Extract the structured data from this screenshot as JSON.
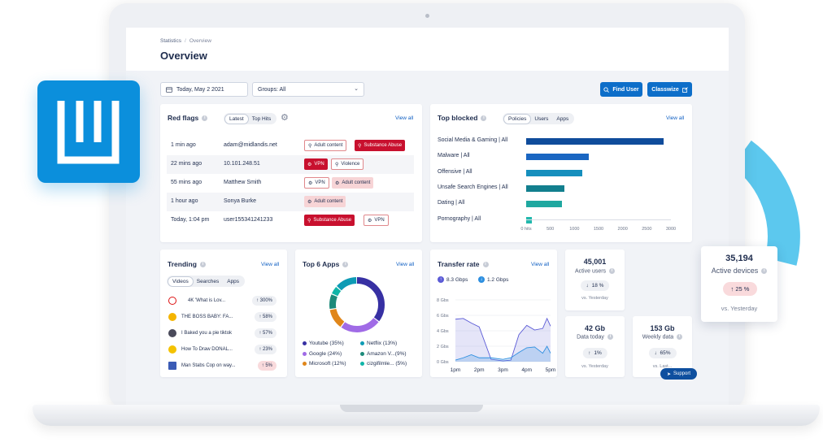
{
  "header": {
    "breadcrumb_root": "Statistics",
    "breadcrumb_current": "Overview",
    "title": "Overview"
  },
  "filters": {
    "date": "Today, May 2 2021",
    "groups": "Groups: All"
  },
  "actions": {
    "find_user": "Find User",
    "classwize": "Classwize"
  },
  "red_flags": {
    "title": "Red flags",
    "tabs": [
      "Latest",
      "Top Hits"
    ],
    "view_all": "View all",
    "rows": [
      {
        "time": "1 min ago",
        "user": "adam@midlandis.net",
        "tags": [
          {
            "label": "Adult content",
            "style": "outline"
          },
          {
            "label": "Substance Abuse",
            "style": "red"
          }
        ]
      },
      {
        "time": "22 mins ago",
        "user": "10.101.248.51",
        "tags": [
          {
            "label": "VPN",
            "style": "red"
          },
          {
            "label": "Violence",
            "style": "outline"
          }
        ]
      },
      {
        "time": "55 mins ago",
        "user": "Matthew Smith",
        "tags": [
          {
            "label": "VPN",
            "style": "outline"
          },
          {
            "label": "Adult content",
            "style": "pink"
          }
        ]
      },
      {
        "time": "1 hour ago",
        "user": "Sonya Burke",
        "tags": [
          {
            "label": "Adult content",
            "style": "pink"
          }
        ]
      },
      {
        "time": "Today, 1:04 pm",
        "user": "user155341241233",
        "tags": [
          {
            "label": "Substance Abuse",
            "style": "red"
          },
          {
            "label": "VPN",
            "style": "outline"
          }
        ]
      }
    ]
  },
  "top_blocked": {
    "title": "Top blocked",
    "tabs": [
      "Policies",
      "Users",
      "Apps"
    ],
    "view_all": "View all",
    "bars": [
      {
        "label": "Social Media & Gaming | All",
        "value": 2850,
        "color": "#0f4c9b"
      },
      {
        "label": "Malware | All",
        "value": 1300,
        "color": "#1a66c2"
      },
      {
        "label": "Offensive | All",
        "value": 1170,
        "color": "#168fbd"
      },
      {
        "label": "Unsafe Search Engines | All",
        "value": 800,
        "color": "#127f8e"
      },
      {
        "label": "Dating | All",
        "value": 740,
        "color": "#1fa8a0"
      },
      {
        "label": "Pornography | All",
        "value": 110,
        "color": "#22b8ad"
      }
    ],
    "ticks": [
      "0 hits",
      "500",
      "1000",
      "1500",
      "2000",
      "2500",
      "3000"
    ]
  },
  "trending": {
    "title": "Trending",
    "view_all": "View all",
    "tabs": [
      "Videos",
      "Searches",
      "Apps"
    ],
    "items": [
      {
        "text": "4K 'What is Lov...",
        "change": "300%",
        "tone": "grey",
        "icon": "heart-icon"
      },
      {
        "text": "THE BOSS BABY: FA...",
        "change": "58%",
        "tone": "grey",
        "icon": "emoji-icon"
      },
      {
        "text": "I Baked you a pie tiktok",
        "change": "57%",
        "tone": "grey",
        "icon": "avatar-icon"
      },
      {
        "text": "How To Draw DONAL...",
        "change": "23%",
        "tone": "grey",
        "icon": "emoji-icon"
      },
      {
        "text": "Man Stabs Cop on way...",
        "change": "5%",
        "tone": "red",
        "icon": "flag-icon"
      }
    ]
  },
  "top_apps": {
    "title": "Top 6 Apps",
    "view_all": "View all",
    "legend": [
      {
        "label": "Youtube (35%)",
        "color": "#3730a3",
        "value": 35
      },
      {
        "label": "Netflix (13%)",
        "color": "#0e9bb5",
        "value": 13
      },
      {
        "label": "Google (24%)",
        "color": "#a06be6",
        "value": 24
      },
      {
        "label": "Amazon V...(9%)",
        "color": "#1d8a7a",
        "value": 9
      },
      {
        "label": "Microsoft (12%)",
        "color": "#e0861a",
        "value": 12
      },
      {
        "label": "cizgifilmle... (5%)",
        "color": "#10b5a8",
        "value": 5
      }
    ]
  },
  "chart_data": {
    "type": "area",
    "title": "Transfer rate",
    "series": [
      {
        "name": "8.3 Gbps",
        "color": "#5b5bd6",
        "values": [
          5.5,
          5.6,
          5.0,
          4.5,
          0.3,
          0.1,
          0.2,
          3.5,
          4.7,
          4.1,
          4.3,
          5.6,
          4.6
        ]
      },
      {
        "name": "1.2 Gbps",
        "color": "#2d8fe0",
        "values": [
          0.2,
          0.5,
          0.9,
          0.5,
          0.5,
          0.3,
          0.5,
          1.2,
          1.8,
          1.9,
          1.1,
          2.0,
          1.1
        ]
      }
    ],
    "x": [
      1,
      1.33,
      1.67,
      2,
      2.5,
      3,
      3.33,
      3.67,
      4,
      4.33,
      4.67,
      4.85,
      5
    ],
    "xticks": [
      "1pm",
      "2pm",
      "3pm",
      "4pm",
      "5pm"
    ],
    "yticks": [
      "8 Gbs",
      "6 Gbs",
      "4 Gbs",
      "2 Gbs",
      "0 Gbs"
    ],
    "ylim": [
      0,
      8
    ]
  },
  "transfer": {
    "title": "Transfer rate",
    "view_all": "View all",
    "legend_a": "8.3 Gbps",
    "legend_b": "1.2 Gbps"
  },
  "stats": {
    "active_users": {
      "value": "45,001",
      "label": "Active users",
      "change": "18 %",
      "sub": "vs. Yesterday"
    },
    "data_today": {
      "value": "42 Gb",
      "label": "Data today",
      "change": "1%",
      "sub": "vs. Yesterday"
    },
    "weekly_data": {
      "value": "153 Gb",
      "label": "Weekly data",
      "change": "65%",
      "sub": "vs. Last..."
    }
  },
  "active_devices": {
    "value": "35,194",
    "label": "Active devices",
    "change": "25 %",
    "sub": "vs. Yesterday"
  },
  "support": {
    "label": "Support"
  },
  "colors": {
    "accent": "#0d6ec9",
    "danger": "#c8102e",
    "brand_tile": "#0b8fdc",
    "arc": "#5cc8ee"
  }
}
